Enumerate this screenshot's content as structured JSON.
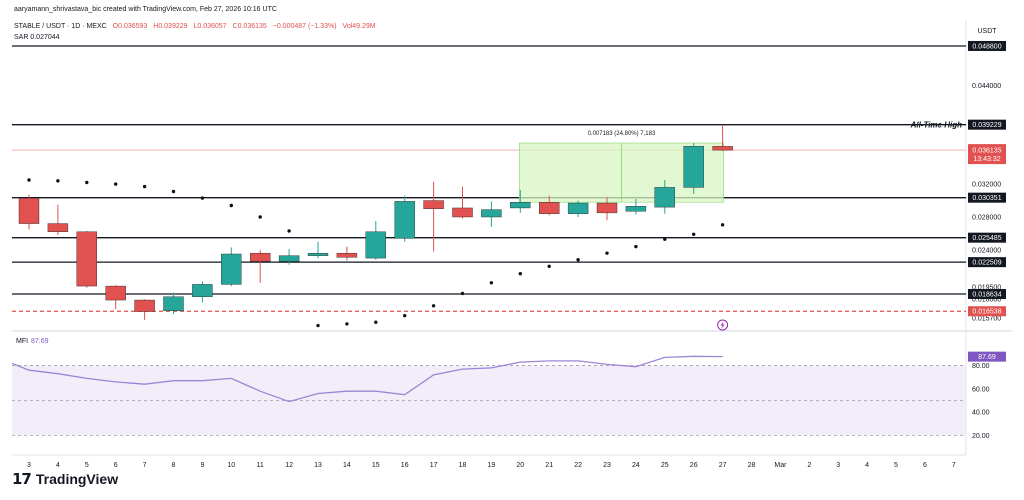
{
  "header": {
    "line1": "aaryamann_shrivastava_bic created with TradingView.com, Feb 27, 2026 10:16 UTC",
    "symbol": "STABLE / USDT · 1D · MEXC",
    "open": "O0.036593",
    "high": "H0.039229",
    "low": "L0.036057",
    "close": "C0.036135",
    "change": "−0.000487 (−1.33%)",
    "volume": "Vol49.29M",
    "sar": "SAR 0.027044"
  },
  "price_axis": {
    "unit": "USDT",
    "ticks": [
      "0.044000",
      "0.032000",
      "0.028000",
      "0.024000",
      "0.019500",
      "0.018000",
      "0.015700"
    ],
    "labels": [
      {
        "value": 0.0488,
        "text": "0.048800",
        "style": "black"
      },
      {
        "value": 0.039229,
        "text": "0.039229",
        "style": "black"
      },
      {
        "value": 0.036135,
        "text": "0.036135",
        "sub": "13:43:32",
        "style": "red"
      },
      {
        "value": 0.030351,
        "text": "0.030351",
        "style": "black"
      },
      {
        "value": 0.025485,
        "text": "0.025485",
        "style": "black"
      },
      {
        "value": 0.022509,
        "text": "0.022509",
        "style": "black"
      },
      {
        "value": 0.018634,
        "text": "0.018634",
        "style": "black"
      },
      {
        "value": 0.016538,
        "text": "0.016538",
        "style": "red"
      }
    ]
  },
  "annotations": {
    "ath_label": "All-Time High",
    "measure_label": "0.007183 (24.80%) 7,183"
  },
  "mfi": {
    "label": "MFI",
    "value": "87.69",
    "ticks": [
      "80.00",
      "60.00",
      "40.00",
      "20.00"
    ]
  },
  "x_axis": {
    "ticks": [
      "3",
      "4",
      "5",
      "6",
      "7",
      "8",
      "9",
      "10",
      "11",
      "12",
      "13",
      "14",
      "15",
      "16",
      "17",
      "18",
      "19",
      "20",
      "21",
      "22",
      "23",
      "24",
      "25",
      "26",
      "27",
      "28",
      "Mar",
      "2",
      "3",
      "4",
      "5",
      "6",
      "7"
    ]
  },
  "brand": {
    "logo": "17",
    "name": "TradingView"
  },
  "colors": {
    "up": "#26a69a",
    "down": "#e0514f",
    "mfi_line": "#9b86d6",
    "mfi_fill": "#ede7f6",
    "measure_fill": "#d7f5c4"
  },
  "chart_data": [
    {
      "type": "candlestick",
      "title": "STABLE / USDT · 1D · MEXC",
      "x": [
        "Feb 3",
        "Feb 4",
        "Feb 5",
        "Feb 6",
        "Feb 7",
        "Feb 8",
        "Feb 9",
        "Feb 10",
        "Feb 11",
        "Feb 12",
        "Feb 13",
        "Feb 14",
        "Feb 15",
        "Feb 16",
        "Feb 17",
        "Feb 18",
        "Feb 19",
        "Feb 20",
        "Feb 21",
        "Feb 22",
        "Feb 23",
        "Feb 24",
        "Feb 25",
        "Feb 26",
        "Feb 27"
      ],
      "ohlc": [
        [
          0.0303,
          0.0307,
          0.0265,
          0.0272
        ],
        [
          0.0272,
          0.0295,
          0.0258,
          0.0262
        ],
        [
          0.0262,
          0.0263,
          0.0194,
          0.0196
        ],
        [
          0.0196,
          0.0197,
          0.0168,
          0.0179
        ],
        [
          0.0179,
          0.018,
          0.0155,
          0.0165
        ],
        [
          0.0166,
          0.0188,
          0.0162,
          0.0183
        ],
        [
          0.0183,
          0.0202,
          0.0176,
          0.0198
        ],
        [
          0.0198,
          0.0243,
          0.0196,
          0.0235
        ],
        [
          0.0236,
          0.024,
          0.02,
          0.0226
        ],
        [
          0.0226,
          0.0241,
          0.0222,
          0.0233
        ],
        [
          0.0233,
          0.025,
          0.023,
          0.0236
        ],
        [
          0.0236,
          0.0244,
          0.0227,
          0.0231
        ],
        [
          0.023,
          0.0275,
          0.0228,
          0.0262
        ],
        [
          0.0254,
          0.0306,
          0.025,
          0.0299
        ],
        [
          0.03,
          0.0323,
          0.0238,
          0.029
        ],
        [
          0.0291,
          0.0317,
          0.0278,
          0.028
        ],
        [
          0.028,
          0.0299,
          0.0268,
          0.0289
        ],
        [
          0.0291,
          0.0313,
          0.0285,
          0.0298
        ],
        [
          0.0298,
          0.0306,
          0.0282,
          0.0284
        ],
        [
          0.0284,
          0.03,
          0.028,
          0.0297
        ],
        [
          0.0297,
          0.0304,
          0.0276,
          0.0285
        ],
        [
          0.0287,
          0.0302,
          0.0283,
          0.0293
        ],
        [
          0.0292,
          0.0325,
          0.0284,
          0.0316
        ],
        [
          0.0316,
          0.037,
          0.0308,
          0.0366
        ],
        [
          0.036593,
          0.039229,
          0.036057,
          0.036135
        ]
      ],
      "series": [
        {
          "name": "SAR",
          "values": [
            0.0325,
            0.0324,
            0.0322,
            0.032,
            0.0317,
            0.0311,
            0.0303,
            0.0294,
            0.028,
            0.0263,
            0.0148,
            0.015,
            0.0152,
            0.016,
            0.0172,
            0.0187,
            0.02,
            0.0211,
            0.022,
            0.0228,
            0.0236,
            0.0244,
            0.0253,
            0.0259,
            0.027044
          ]
        }
      ],
      "ylabel": "USDT",
      "ylim": [
        0.0145,
        0.0505
      ],
      "levels": [
        0.0488,
        0.039229,
        0.030351,
        0.025485,
        0.022509,
        0.018634,
        0.016538
      ]
    },
    {
      "type": "line",
      "x": [
        "Feb 2",
        "Feb 3",
        "Feb 4",
        "Feb 5",
        "Feb 6",
        "Feb 7",
        "Feb 8",
        "Feb 9",
        "Feb 10",
        "Feb 11",
        "Feb 12",
        "Feb 13",
        "Feb 14",
        "Feb 15",
        "Feb 16",
        "Feb 17",
        "Feb 18",
        "Feb 19",
        "Feb 20",
        "Feb 21",
        "Feb 22",
        "Feb 23",
        "Feb 24",
        "Feb 25",
        "Feb 26",
        "Feb 27"
      ],
      "series": [
        {
          "name": "MFI",
          "values": [
            82,
            76,
            73,
            69,
            66,
            64,
            67,
            67,
            69,
            58,
            49,
            56,
            58,
            58,
            55,
            72,
            77,
            78,
            83,
            84,
            84,
            81,
            79,
            87,
            88,
            87.69
          ]
        }
      ],
      "ylim": [
        16,
        102
      ],
      "bands": [
        20,
        50,
        80
      ]
    }
  ]
}
